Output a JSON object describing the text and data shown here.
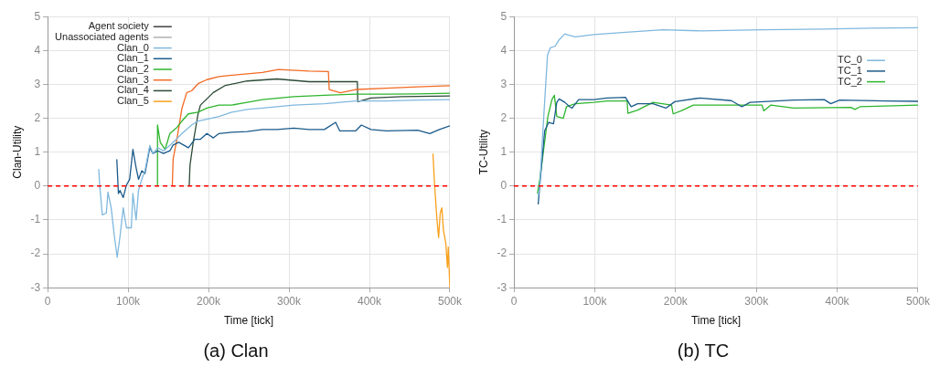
{
  "chart_data": [
    {
      "type": "line",
      "title": "(a) Clan",
      "xlabel": "Time [tick]",
      "ylabel": "Clan-Utility",
      "xlim": [
        0,
        500000
      ],
      "xticks": [
        {
          "value": 0,
          "label": "0"
        },
        {
          "value": 100000,
          "label": "100k"
        },
        {
          "value": 200000,
          "label": "200k"
        },
        {
          "value": 300000,
          "label": "300k"
        },
        {
          "value": 400000,
          "label": "400k"
        },
        {
          "value": 500000,
          "label": "500k"
        }
      ],
      "ylim": [
        -3,
        5
      ],
      "yticks": [
        -3,
        -2,
        -1,
        0,
        1,
        2,
        3,
        4,
        5
      ],
      "grid": true,
      "legend": "top left",
      "marker": "none",
      "line_style": "solid",
      "ref_lines": [
        {
          "axis": "y",
          "value": 0,
          "color": "#ff0000",
          "line_style": "dashed"
        }
      ],
      "series": [
        {
          "name": "Agent society",
          "color": "#404040"
        },
        {
          "name": "Unassociated agents",
          "color": "#b0b0b0"
        },
        {
          "name": "Clan_0",
          "color": "#7fb8de",
          "x": [
            63500,
            65000,
            68000,
            73000,
            75000,
            79000,
            83000,
            86500,
            90000,
            94000,
            98000,
            104000,
            106000,
            110000,
            113000,
            117000,
            121000,
            127000,
            131000,
            137000,
            144000,
            152000,
            160000,
            167000,
            179000,
            187000,
            198000,
            213000,
            229000,
            248000,
            267000,
            306000,
            344000,
            383000,
            421000,
            460000,
            500000
          ],
          "values": [
            0.5,
            -0.05,
            -0.85,
            -0.8,
            -0.18,
            -0.64,
            -1.48,
            -2.1,
            -1.48,
            -0.64,
            -1.23,
            -1.23,
            -0.22,
            -1.0,
            -0.13,
            0.2,
            0.45,
            1.2,
            0.96,
            1.13,
            1.04,
            1.2,
            1.38,
            1.55,
            1.8,
            1.92,
            1.97,
            2.05,
            2.18,
            2.26,
            2.3,
            2.39,
            2.43,
            2.51,
            2.51,
            2.54,
            2.55
          ]
        },
        {
          "name": "Clan_1",
          "color": "#1a5a8a",
          "x": [
            86000,
            88000,
            90000,
            94000,
            98000,
            102000,
            106000,
            110000,
            113000,
            117000,
            121000,
            127000,
            131000,
            137000,
            144000,
            152000,
            156000,
            163000,
            175000,
            183000,
            190000,
            198000,
            206000,
            213000,
            229000,
            248000,
            267000,
            285000,
            306000,
            325000,
            344000,
            358000,
            363000,
            383000,
            390000,
            402000,
            421000,
            460000,
            475000,
            487000,
            500000
          ],
          "values": [
            0.79,
            -0.22,
            -0.13,
            -0.34,
            0.03,
            0.2,
            1.08,
            0.54,
            0.2,
            0.45,
            0.37,
            1.13,
            0.96,
            1.04,
            0.96,
            1.04,
            1.21,
            1.29,
            1.13,
            1.38,
            1.38,
            1.55,
            1.42,
            1.55,
            1.59,
            1.61,
            1.67,
            1.67,
            1.71,
            1.67,
            1.67,
            1.88,
            1.63,
            1.63,
            1.8,
            1.67,
            1.63,
            1.65,
            1.55,
            1.67,
            1.78
          ]
        },
        {
          "name": "Clan_2",
          "color": "#2db52d",
          "x": [
            136500,
            136600,
            140000,
            146000,
            152000,
            160000,
            167000,
            175000,
            187000,
            198000,
            213000,
            229000,
            248000,
            267000,
            306000,
            344000,
            383000,
            421000,
            460000,
            500000
          ],
          "values": [
            0,
            1.8,
            1.29,
            1.08,
            1.55,
            1.71,
            1.92,
            2.13,
            2.18,
            2.3,
            2.39,
            2.39,
            2.47,
            2.55,
            2.64,
            2.68,
            2.71,
            2.71,
            2.72,
            2.74
          ]
        },
        {
          "name": "Clan_3",
          "color": "#f26a23",
          "x": [
            155000,
            156000,
            160000,
            163000,
            167000,
            173000,
            179000,
            187000,
            198000,
            213000,
            229000,
            267000,
            287000,
            325000,
            349000,
            350000,
            364000,
            383000,
            421000,
            460000,
            500000
          ],
          "values": [
            0,
            0.79,
            1.29,
            1.71,
            2.3,
            2.76,
            2.81,
            3.02,
            3.14,
            3.23,
            3.27,
            3.35,
            3.44,
            3.39,
            3.38,
            2.85,
            2.75,
            2.85,
            2.89,
            2.93,
            2.96
          ]
        },
        {
          "name": "Clan_4",
          "color": "#2b4a35",
          "x": [
            176000,
            177000,
            181000,
            187000,
            190000,
            206000,
            221000,
            248000,
            285000,
            325000,
            385000,
            385500,
            402000,
            440000,
            500000
          ],
          "values": [
            0,
            0.62,
            1.29,
            2.13,
            2.39,
            2.76,
            2.97,
            3.1,
            3.16,
            3.08,
            3.08,
            2.49,
            2.6,
            2.64,
            2.66
          ]
        },
        {
          "name": "Clan_5",
          "color": "#f9a01b",
          "x": [
            479000,
            481000,
            484000,
            486000,
            488000,
            490000,
            492000,
            495000,
            497000,
            498000,
            500000
          ],
          "values": [
            0.96,
            0.03,
            -1.0,
            -1.52,
            -0.8,
            -0.64,
            -1.3,
            -1.7,
            -2.4,
            -1.8,
            -3
          ]
        }
      ]
    },
    {
      "type": "line",
      "title": "(b) TC",
      "xlabel": "Time [tick]",
      "ylabel": "TC-Utility",
      "xlim": [
        0,
        500000
      ],
      "xticks": [
        {
          "value": 0,
          "label": "0"
        },
        {
          "value": 100000,
          "label": "100k"
        },
        {
          "value": 200000,
          "label": "200k"
        },
        {
          "value": 300000,
          "label": "300k"
        },
        {
          "value": 400000,
          "label": "400k"
        },
        {
          "value": 500000,
          "label": "500k"
        }
      ],
      "ylim": [
        -3,
        5
      ],
      "yticks": [
        -3,
        -2,
        -1,
        0,
        1,
        2,
        3,
        4,
        5
      ],
      "grid": true,
      "legend": "top right",
      "marker": "none",
      "line_style": "solid",
      "ref_lines": [
        {
          "axis": "y",
          "value": 0,
          "color": "#ff0000",
          "line_style": "dashed"
        }
      ],
      "series": [
        {
          "name": "TC_0",
          "color": "#7fb8de",
          "x": [
            30000,
            32000,
            36000,
            41500,
            45000,
            51000,
            56000,
            63000,
            68000,
            76000,
            99000,
            134000,
            184000,
            230000,
            307000,
            384000,
            441000,
            500000
          ],
          "values": [
            -0.3,
            0.03,
            1.71,
            3.86,
            4.08,
            4.13,
            4.32,
            4.49,
            4.45,
            4.4,
            4.47,
            4.53,
            4.61,
            4.58,
            4.61,
            4.63,
            4.66,
            4.67
          ]
        },
        {
          "name": "TC_1",
          "color": "#1a5a8a",
          "x": [
            30000,
            32000,
            38000,
            43000,
            49000,
            53000,
            56000,
            63000,
            69000,
            72000,
            80000,
            99000,
            115000,
            138000,
            145000,
            153000,
            172000,
            188000,
            199000,
            230000,
            269000,
            282000,
            292000,
            346000,
            384000,
            392000,
            403000,
            461000,
            500000
          ],
          "values": [
            -0.54,
            0.03,
            1.63,
            1.88,
            1.84,
            2.47,
            2.57,
            2.47,
            2.34,
            2.3,
            2.55,
            2.55,
            2.6,
            2.62,
            2.34,
            2.43,
            2.43,
            2.3,
            2.49,
            2.6,
            2.52,
            2.34,
            2.47,
            2.54,
            2.55,
            2.43,
            2.54,
            2.51,
            2.5
          ]
        },
        {
          "name": "TC_2",
          "color": "#2db52d",
          "x": [
            29000,
            32000,
            42000,
            47000,
            50000,
            53000,
            61000,
            65000,
            76000,
            99000,
            115000,
            140000,
            141000,
            153000,
            172000,
            195000,
            197000,
            207000,
            222000,
            269000,
            307000,
            309000,
            318000,
            346000,
            417000,
            422000,
            428000,
            500000
          ],
          "values": [
            -0.22,
            0.2,
            2.05,
            2.55,
            2.68,
            2.05,
            2.0,
            2.34,
            2.43,
            2.47,
            2.51,
            2.51,
            2.15,
            2.24,
            2.47,
            2.39,
            2.13,
            2.22,
            2.39,
            2.39,
            2.39,
            2.22,
            2.39,
            2.3,
            2.32,
            2.26,
            2.34,
            2.39
          ]
        }
      ]
    }
  ]
}
